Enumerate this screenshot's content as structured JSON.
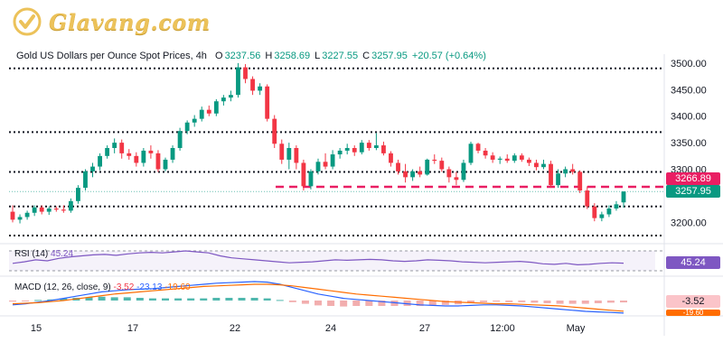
{
  "brand": {
    "logo_text": "Glavang.com",
    "logo_color": "#ecc25a"
  },
  "header": {
    "title": "Gold US Dollars per Ounce Spot Prices, 4h",
    "open_label": "O",
    "open": "3237.56",
    "high_label": "H",
    "high": "3258.69",
    "low_label": "L",
    "low": "3227.55",
    "close_label": "C",
    "close": "3257.95",
    "change": "+20.57 (+0.64%)"
  },
  "price_axis": {
    "ticks": [
      "3500.00",
      "3450.00",
      "3400.00",
      "3350.00",
      "3300.00",
      "3200.00"
    ]
  },
  "badges": {
    "level": "3266.89",
    "last": "3257.95",
    "rsi": "45.24",
    "macd_hist": "-3.52",
    "macd_signal": "-19.60"
  },
  "time_axis": {
    "labels": [
      "15",
      "17",
      "22",
      "24",
      "27",
      "12:00",
      "May"
    ]
  },
  "rsi_panel": {
    "label": "RSI (14)",
    "value": "45.24"
  },
  "macd_panel": {
    "label": "MACD (12, 26, close, 9)",
    "hist": "-3.52",
    "macd": "-23.13",
    "signal": "-19.60"
  },
  "colors": {
    "up": "#089981",
    "down": "#f23645",
    "rsi": "#7e57c2",
    "macd": "#2962ff",
    "signal": "#ff6d00",
    "level_line": "#e91e63"
  },
  "chart_data": {
    "type": "candlestick",
    "levels": [
      3490,
      3370,
      3295,
      3230,
      3175
    ],
    "dashed_level": 3266.89,
    "ylim": [
      3170,
      3510
    ],
    "candles": [
      [
        3220,
        3232,
        3200,
        3205
      ],
      [
        3205,
        3215,
        3198,
        3210
      ],
      [
        3210,
        3222,
        3205,
        3218
      ],
      [
        3218,
        3232,
        3212,
        3228
      ],
      [
        3228,
        3232,
        3215,
        3220
      ],
      [
        3220,
        3230,
        3214,
        3226
      ],
      [
        3226,
        3230,
        3220,
        3224
      ],
      [
        3224,
        3232,
        3218,
        3222
      ],
      [
        3222,
        3245,
        3218,
        3240
      ],
      [
        3240,
        3270,
        3235,
        3265
      ],
      [
        3265,
        3300,
        3260,
        3296
      ],
      [
        3296,
        3312,
        3285,
        3305
      ],
      [
        3305,
        3330,
        3298,
        3325
      ],
      [
        3325,
        3345,
        3320,
        3340
      ],
      [
        3340,
        3358,
        3330,
        3350
      ],
      [
        3350,
        3356,
        3320,
        3330
      ],
      [
        3330,
        3338,
        3318,
        3325
      ],
      [
        3325,
        3332,
        3305,
        3312
      ],
      [
        3312,
        3340,
        3305,
        3335
      ],
      [
        3335,
        3345,
        3320,
        3330
      ],
      [
        3330,
        3336,
        3295,
        3300
      ],
      [
        3300,
        3322,
        3296,
        3318
      ],
      [
        3318,
        3345,
        3312,
        3340
      ],
      [
        3340,
        3378,
        3335,
        3372
      ],
      [
        3372,
        3392,
        3366,
        3388
      ],
      [
        3388,
        3402,
        3380,
        3395
      ],
      [
        3395,
        3418,
        3390,
        3412
      ],
      [
        3412,
        3420,
        3400,
        3405
      ],
      [
        3405,
        3432,
        3400,
        3428
      ],
      [
        3428,
        3440,
        3420,
        3435
      ],
      [
        3435,
        3448,
        3428,
        3440
      ],
      [
        3440,
        3500,
        3435,
        3492
      ],
      [
        3492,
        3498,
        3462,
        3470
      ],
      [
        3470,
        3475,
        3440,
        3448
      ],
      [
        3448,
        3462,
        3440,
        3456
      ],
      [
        3456,
        3460,
        3390,
        3395
      ],
      [
        3395,
        3402,
        3340,
        3348
      ],
      [
        3348,
        3356,
        3310,
        3318
      ],
      [
        3318,
        3350,
        3300,
        3340
      ],
      [
        3340,
        3345,
        3300,
        3312
      ],
      [
        3312,
        3318,
        3260,
        3268
      ],
      [
        3268,
        3300,
        3262,
        3296
      ],
      [
        3296,
        3320,
        3290,
        3314
      ],
      [
        3314,
        3330,
        3300,
        3305
      ],
      [
        3305,
        3336,
        3300,
        3328
      ],
      [
        3328,
        3340,
        3320,
        3335
      ],
      [
        3335,
        3348,
        3328,
        3340
      ],
      [
        3340,
        3345,
        3325,
        3332
      ],
      [
        3332,
        3355,
        3328,
        3350
      ],
      [
        3350,
        3355,
        3335,
        3340
      ],
      [
        3340,
        3368,
        3336,
        3345
      ],
      [
        3345,
        3352,
        3326,
        3330
      ],
      [
        3330,
        3334,
        3305,
        3312
      ],
      [
        3312,
        3318,
        3290,
        3296
      ],
      [
        3296,
        3310,
        3275,
        3285
      ],
      [
        3285,
        3300,
        3278,
        3296
      ],
      [
        3296,
        3305,
        3285,
        3290
      ],
      [
        3290,
        3320,
        3288,
        3318
      ],
      [
        3318,
        3328,
        3310,
        3316
      ],
      [
        3316,
        3322,
        3295,
        3300
      ],
      [
        3300,
        3305,
        3275,
        3285
      ],
      [
        3285,
        3295,
        3270,
        3280
      ],
      [
        3280,
        3318,
        3276,
        3312
      ],
      [
        3312,
        3352,
        3308,
        3348
      ],
      [
        3348,
        3350,
        3330,
        3335
      ],
      [
        3335,
        3340,
        3320,
        3326
      ],
      [
        3326,
        3332,
        3312,
        3318
      ],
      [
        3318,
        3324,
        3310,
        3320
      ],
      [
        3320,
        3328,
        3312,
        3316
      ],
      [
        3316,
        3330,
        3312,
        3326
      ],
      [
        3326,
        3330,
        3314,
        3318
      ],
      [
        3318,
        3322,
        3306,
        3312
      ],
      [
        3312,
        3318,
        3298,
        3304
      ],
      [
        3304,
        3318,
        3300,
        3310
      ],
      [
        3310,
        3316,
        3265,
        3270
      ],
      [
        3270,
        3300,
        3265,
        3292
      ],
      [
        3292,
        3305,
        3285,
        3300
      ],
      [
        3300,
        3310,
        3290,
        3295
      ],
      [
        3295,
        3298,
        3255,
        3260
      ],
      [
        3260,
        3268,
        3225,
        3230
      ],
      [
        3230,
        3236,
        3202,
        3208
      ],
      [
        3208,
        3220,
        3202,
        3215
      ],
      [
        3215,
        3232,
        3210,
        3226
      ],
      [
        3226,
        3240,
        3222,
        3234
      ],
      [
        3237.56,
        3258.69,
        3227.55,
        3257.95
      ]
    ],
    "rsi": {
      "values": [
        45,
        48,
        52,
        50,
        55,
        58,
        60,
        62,
        63,
        61,
        64,
        66,
        67,
        66,
        68,
        70,
        68,
        66,
        60,
        56,
        54,
        52,
        50,
        48,
        46,
        47,
        48,
        50,
        52,
        51,
        52,
        53,
        52,
        50,
        49,
        50,
        52,
        51,
        50,
        48,
        47,
        46,
        47,
        48,
        49,
        47,
        44,
        43,
        45,
        42,
        43,
        45,
        46,
        45.24
      ],
      "upper": 70,
      "lower": 30
    },
    "macd": {
      "macd": [
        -8,
        -6,
        -3,
        0,
        4,
        8,
        12,
        16,
        18,
        20,
        21,
        22,
        24,
        26,
        28,
        30,
        32,
        33,
        34,
        35,
        34,
        30,
        24,
        18,
        12,
        8,
        4,
        2,
        0,
        -2,
        -4,
        -6,
        -8,
        -9,
        -10,
        -10,
        -9,
        -8,
        -8,
        -9,
        -10,
        -12,
        -14,
        -16,
        -18,
        -20,
        -21,
        -22,
        -23.13
      ],
      "signal": [
        -6,
        -5,
        -4,
        -2,
        0,
        3,
        6,
        9,
        12,
        14,
        16,
        18,
        20,
        22,
        24,
        26,
        27,
        28,
        29,
        30,
        30,
        29,
        27,
        24,
        21,
        18,
        15,
        12,
        10,
        8,
        6,
        4,
        2,
        0,
        -2,
        -3,
        -4,
        -5,
        -6,
        -6,
        -7,
        -8,
        -9,
        -10,
        -12,
        -14,
        -16,
        -18,
        -19.6
      ],
      "hist": [
        -2,
        -1,
        1,
        2,
        4,
        5,
        6,
        7,
        6,
        6,
        5,
        4,
        4,
        4,
        4,
        4,
        5,
        5,
        5,
        5,
        4,
        1,
        -3,
        -6,
        -9,
        -10,
        -11,
        -10,
        -10,
        -10,
        -10,
        -10,
        -10,
        -9,
        -8,
        -7,
        -5,
        -3,
        -2,
        -3,
        -3,
        -4,
        -5,
        -6,
        -6,
        -6,
        -5,
        -4,
        -3.52
      ]
    }
  }
}
